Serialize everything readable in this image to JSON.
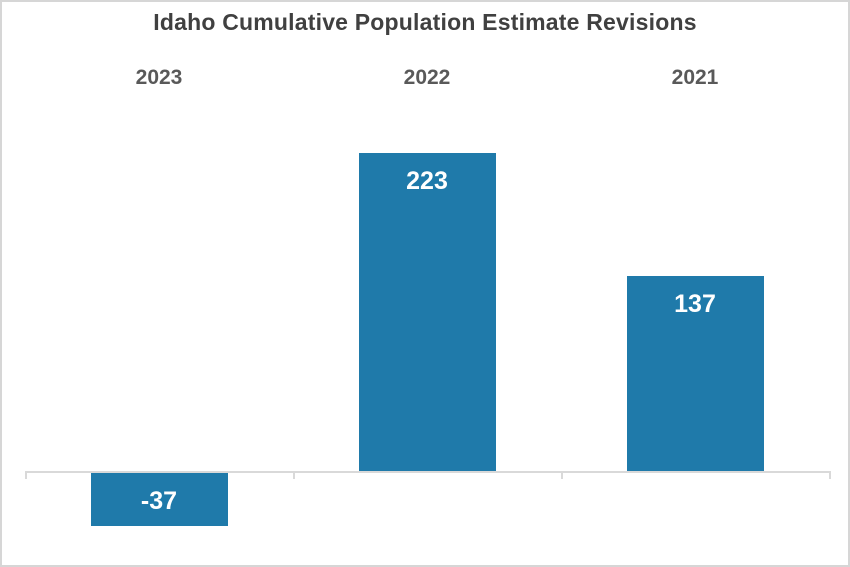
{
  "chart": {
    "title": "Idaho Cumulative Population Estimate Revisions"
  },
  "chart_data": {
    "type": "bar",
    "title": "Idaho Cumulative Population Estimate Revisions",
    "categories": [
      "2023",
      "2022",
      "2021"
    ],
    "values": [
      -37,
      223,
      137
    ],
    "value_labels": [
      "-37",
      "223",
      "137"
    ],
    "xlabel": "",
    "ylabel": "",
    "ylim": [
      -50,
      250
    ],
    "grid": false,
    "legend": "none",
    "category_labels_position": "top",
    "value_labels_position": "inside-end",
    "colors": {
      "bar_fill": "#1f7aaa",
      "value_label": "#ffffff",
      "category_label": "#595959",
      "title": "#404040",
      "axis": "#d9d9d9",
      "background": "#ffffff",
      "page_border": "#d6d6d6"
    }
  }
}
